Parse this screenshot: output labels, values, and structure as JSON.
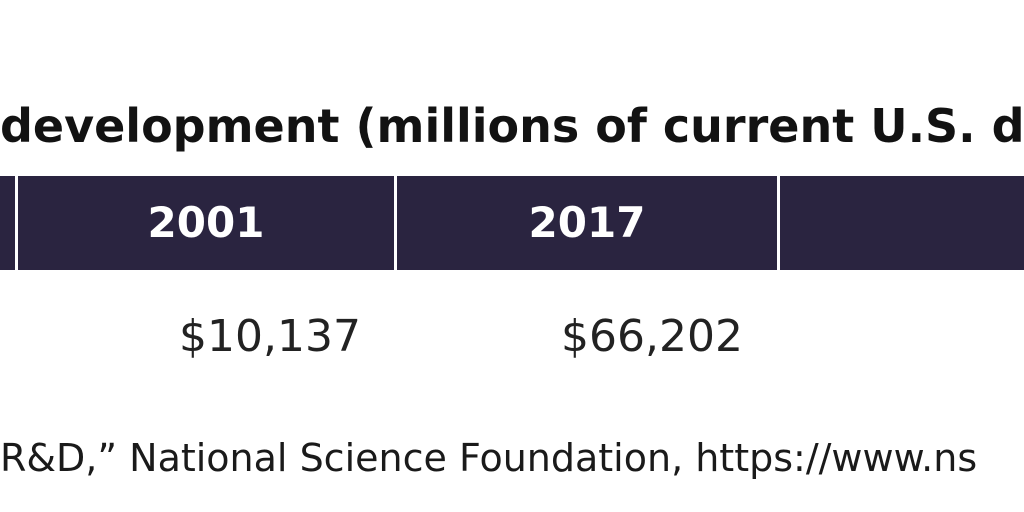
{
  "chart_data": {
    "type": "table",
    "title": "development (millions of current U.S. dol",
    "columns": [
      "2001",
      "2017",
      ""
    ],
    "rows": [
      {
        "values": [
          "$10,137",
          "$66,202",
          ""
        ]
      }
    ],
    "source": "R&D,” National Science Foundation, https://www.ns"
  },
  "colors": {
    "header_background": "#2a2440",
    "header_text": "#ffffff",
    "divider": "#ffffff"
  }
}
